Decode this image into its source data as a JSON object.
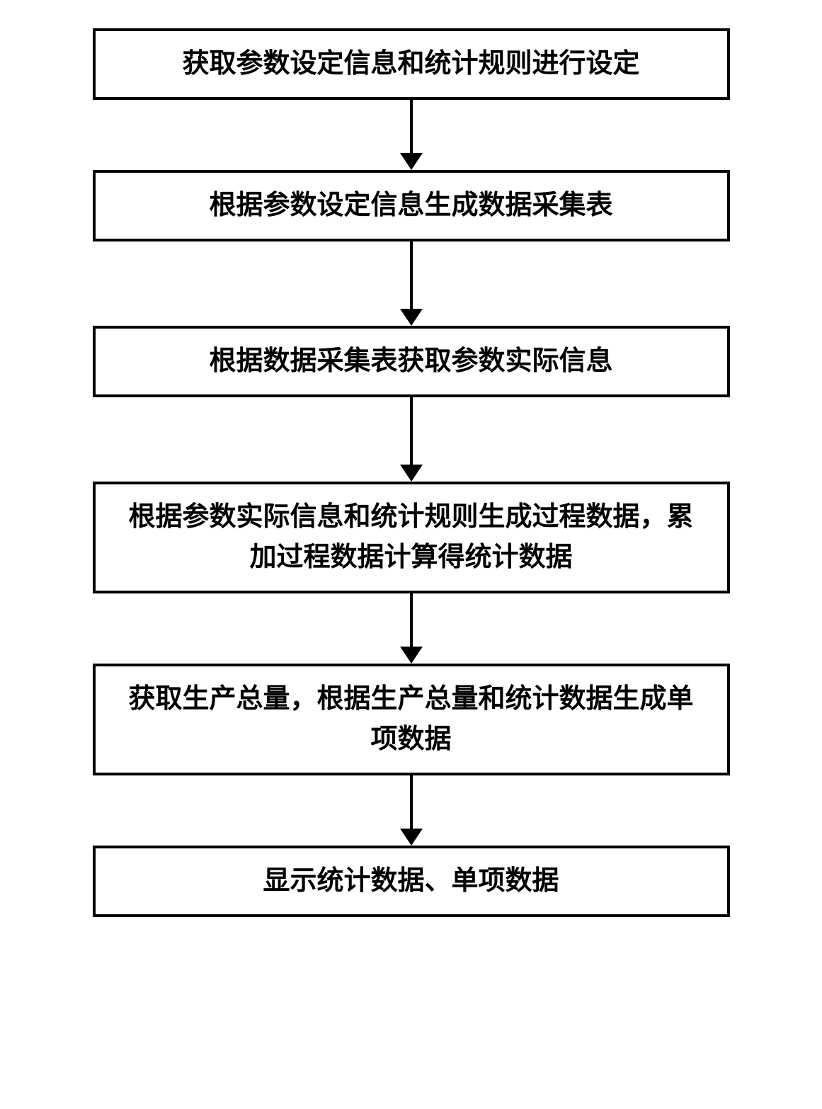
{
  "flowchart": {
    "type": "flowchart",
    "direction": "top-to-bottom",
    "background_color": "#ffffff",
    "box_border_color": "#000000",
    "box_border_width": 4,
    "box_background": "#ffffff",
    "text_color": "#000000",
    "font_size": 38,
    "font_weight": "bold",
    "font_family": "SimSun",
    "arrow_color": "#000000",
    "arrow_line_width": 4,
    "arrow_head_size": 24,
    "nodes": [
      {
        "id": "step1",
        "text": "获取参数设定信息和统计规则进行设定",
        "lines": 1,
        "arrow_line_height": 75
      },
      {
        "id": "step2",
        "text": "根据参数设定信息生成数据采集表",
        "lines": 1,
        "arrow_line_height": 95
      },
      {
        "id": "step3",
        "text": "根据数据采集表获取参数实际信息",
        "lines": 1,
        "arrow_line_height": 95
      },
      {
        "id": "step4",
        "text": "根据参数实际信息和统计规则生成过程数据，累加过程数据计算得统计数据",
        "lines": 2,
        "arrow_line_height": 75
      },
      {
        "id": "step5",
        "text": "获取生产总量，根据生产总量和统计数据生成单项数据",
        "lines": 2,
        "arrow_line_height": 75
      },
      {
        "id": "step6",
        "text": "显示统计数据、单项数据",
        "lines": 1,
        "arrow_line_height": 0
      }
    ],
    "edges": [
      {
        "from": "step1",
        "to": "step2"
      },
      {
        "from": "step2",
        "to": "step3"
      },
      {
        "from": "step3",
        "to": "step4"
      },
      {
        "from": "step4",
        "to": "step5"
      },
      {
        "from": "step5",
        "to": "step6"
      }
    ]
  }
}
